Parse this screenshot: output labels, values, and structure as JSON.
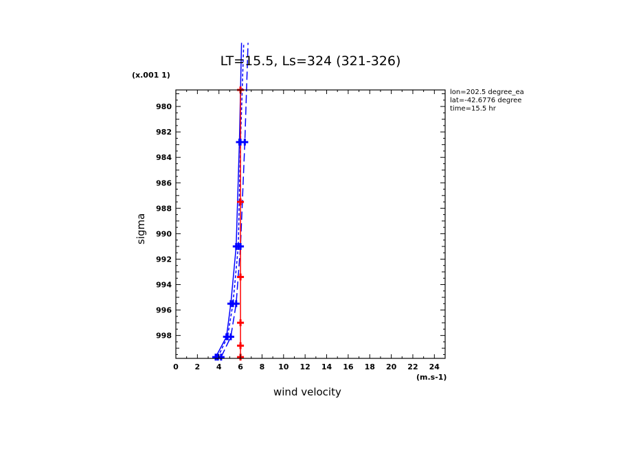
{
  "title": "LT=15.5, Ls=324 (321-326)",
  "scale_label": "(x.001 1)",
  "x_unit_label": "(m.s-1)",
  "info_lines": [
    "lon=202.5 degree_ea",
    "lat=-42.6776 degree",
    "time=15.5 hr"
  ],
  "chart_data": {
    "type": "line",
    "xlabel": "wind velocity",
    "ylabel": "sigma",
    "xlim": [
      0,
      25
    ],
    "ylim": [
      999.8,
      978.7
    ],
    "y_inverted": true,
    "xticks": [
      "0",
      "2",
      "4",
      "6",
      "8",
      "10",
      "12",
      "14",
      "16",
      "18",
      "20",
      "22",
      "24"
    ],
    "yticks": [
      "980",
      "982",
      "984",
      "986",
      "988",
      "990",
      "992",
      "994",
      "996",
      "998"
    ],
    "series": [
      {
        "color": "#0000ff",
        "line_style": "solid",
        "sigma": [
          999.7,
          998.1,
          995.5,
          991.0,
          982.8,
          975.0
        ],
        "values": [
          3.7,
          4.7,
          5.1,
          5.6,
          5.9,
          6.1
        ]
      },
      {
        "color": "#0000ff",
        "line_style": "dashed",
        "sigma": [
          999.7,
          998.1,
          995.5,
          991.0,
          982.8,
          975.0
        ],
        "values": [
          3.9,
          4.8,
          5.3,
          5.8,
          6.0,
          6.3
        ]
      },
      {
        "color": "#0000ff",
        "line_style": "long-dashed",
        "sigma": [
          999.7,
          998.1,
          995.5,
          991.0,
          982.8,
          975.0
        ],
        "values": [
          4.2,
          5.1,
          5.6,
          6.0,
          6.4,
          6.7
        ]
      },
      {
        "color": "#ff0000",
        "line_style": "solid",
        "sigma": [
          999.7,
          998.8,
          997.0,
          993.4,
          987.5,
          978.7
        ],
        "values": [
          6.0,
          6.0,
          6.0,
          6.0,
          6.0,
          6.0
        ]
      }
    ]
  }
}
